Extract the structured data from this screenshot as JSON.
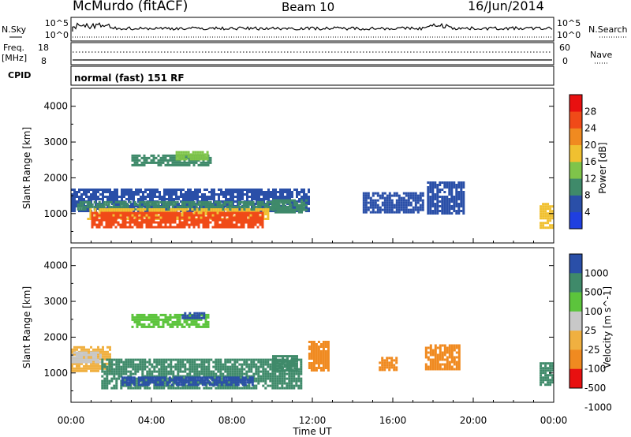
{
  "header": {
    "station": "McMurdo (fitACF)",
    "beam": "Beam 10",
    "date": "16/Jun/2014"
  },
  "top_panel": {
    "nsky_label": "N.Sky",
    "nsearch_label": "N.Search",
    "left_ticks": [
      "10^5",
      "10^0"
    ],
    "right_ticks": [
      "10^5",
      "10^0"
    ],
    "freq_label": "Freq.",
    "freq_unit": "[MHz]",
    "freq_ticks": [
      "18",
      "8"
    ],
    "nave_label": "Nave",
    "nave_ticks": [
      "60",
      "0"
    ],
    "cpid_label": "CPID",
    "cpid_value": "normal (fast) 151 RF"
  },
  "chart_data": [
    {
      "type": "heatmap",
      "name": "power",
      "ylabel": "Slant Range [km]",
      "ylim": [
        180,
        4500
      ],
      "yticks": [
        "1000",
        "2000",
        "3000",
        "4000"
      ],
      "xlabel": "",
      "xlim": [
        0,
        24
      ],
      "colorbar": {
        "label": "Power [dB]",
        "ticks": [
          "4",
          "8",
          "12",
          "16",
          "20",
          "24",
          "28"
        ],
        "bins": [
          {
            "range": [
              0,
              4
            ],
            "color": "#1f3fe0"
          },
          {
            "range": [
              4,
              8
            ],
            "color": "#2a4fa8"
          },
          {
            "range": [
              8,
              12
            ],
            "color": "#3f8a6a"
          },
          {
            "range": [
              12,
              16
            ],
            "color": "#7fc44a"
          },
          {
            "range": [
              16,
              20
            ],
            "color": "#f0c030"
          },
          {
            "range": [
              20,
              24
            ],
            "color": "#f08a20"
          },
          {
            "range": [
              24,
              28
            ],
            "color": "#f04a18"
          },
          {
            "range": [
              28,
              32
            ],
            "color": "#e81010"
          }
        ]
      },
      "regions": [
        {
          "t": [
            0.0,
            11.8
          ],
          "r": [
            1050,
            1700
          ],
          "value": 6
        },
        {
          "t": [
            0.3,
            11.0
          ],
          "r": [
            1100,
            1350
          ],
          "value": 11
        },
        {
          "t": [
            0.8,
            9.8
          ],
          "r": [
            850,
            1150
          ],
          "value": 17
        },
        {
          "t": [
            1.0,
            9.5
          ],
          "r": [
            600,
            1050
          ],
          "value": 27
        },
        {
          "t": [
            10.0,
            11.7
          ],
          "r": [
            1050,
            1400
          ],
          "value": 9
        },
        {
          "t": [
            3.0,
            7.0
          ],
          "r": [
            2350,
            2650
          ],
          "value": 9
        },
        {
          "t": [
            5.2,
            6.8
          ],
          "r": [
            2550,
            2750
          ],
          "value": 13
        },
        {
          "t": [
            14.5,
            17.5
          ],
          "r": [
            1050,
            1600
          ],
          "value": 7
        },
        {
          "t": [
            17.7,
            19.5
          ],
          "r": [
            1000,
            1900
          ],
          "value": 8
        },
        {
          "t": [
            23.3,
            24.0
          ],
          "r": [
            600,
            1300
          ],
          "value": 17
        }
      ]
    },
    {
      "type": "heatmap",
      "name": "velocity",
      "ylabel": "Slant Range [km]",
      "ylim": [
        180,
        4500
      ],
      "yticks": [
        "1000",
        "2000",
        "3000",
        "4000"
      ],
      "xlabel": "Time UT",
      "xlim": [
        0,
        24
      ],
      "xticks": [
        "00:00",
        "04:00",
        "08:00",
        "12:00",
        "16:00",
        "20:00",
        "00:00"
      ],
      "colorbar": {
        "label": "Velocity [m s^-1]",
        "ticks": [
          "1000",
          "500",
          "100",
          "25",
          "-25",
          "-100",
          "-500",
          "-1000"
        ],
        "bins": [
          {
            "range": [
              500,
              1000
            ],
            "color": "#2a4fa8"
          },
          {
            "range": [
              100,
              500
            ],
            "color": "#3f8a6a"
          },
          {
            "range": [
              25,
              100
            ],
            "color": "#5cc43c"
          },
          {
            "range": [
              -25,
              25
            ],
            "color": "#c8c8c8"
          },
          {
            "range": [
              -100,
              -25
            ],
            "color": "#f0b040"
          },
          {
            "range": [
              -500,
              -100
            ],
            "color": "#f08a20"
          },
          {
            "range": [
              -1000,
              -500
            ],
            "color": "#e81010"
          }
        ]
      },
      "regions": [
        {
          "t": [
            0.0,
            2.0
          ],
          "r": [
            1050,
            1750
          ],
          "value": -60
        },
        {
          "t": [
            0.0,
            1.5
          ],
          "r": [
            1300,
            1600
          ],
          "value": 0
        },
        {
          "t": [
            1.5,
            11.5
          ],
          "r": [
            600,
            1400
          ],
          "value": 300
        },
        {
          "t": [
            2.5,
            9.0
          ],
          "r": [
            650,
            900
          ],
          "value": 700
        },
        {
          "t": [
            10.0,
            11.2
          ],
          "r": [
            1050,
            1500
          ],
          "value": 300
        },
        {
          "t": [
            11.8,
            12.8
          ],
          "r": [
            1100,
            1900
          ],
          "value": -300
        },
        {
          "t": [
            15.3,
            16.2
          ],
          "r": [
            1100,
            1450
          ],
          "value": -300
        },
        {
          "t": [
            17.6,
            19.3
          ],
          "r": [
            1100,
            1800
          ],
          "value": -300
        },
        {
          "t": [
            23.3,
            24.0
          ],
          "r": [
            700,
            1300
          ],
          "value": 200
        },
        {
          "t": [
            3.0,
            6.8
          ],
          "r": [
            2300,
            2650
          ],
          "value": 60
        },
        {
          "t": [
            5.5,
            6.6
          ],
          "r": [
            2550,
            2700
          ],
          "value": 700
        }
      ]
    }
  ]
}
